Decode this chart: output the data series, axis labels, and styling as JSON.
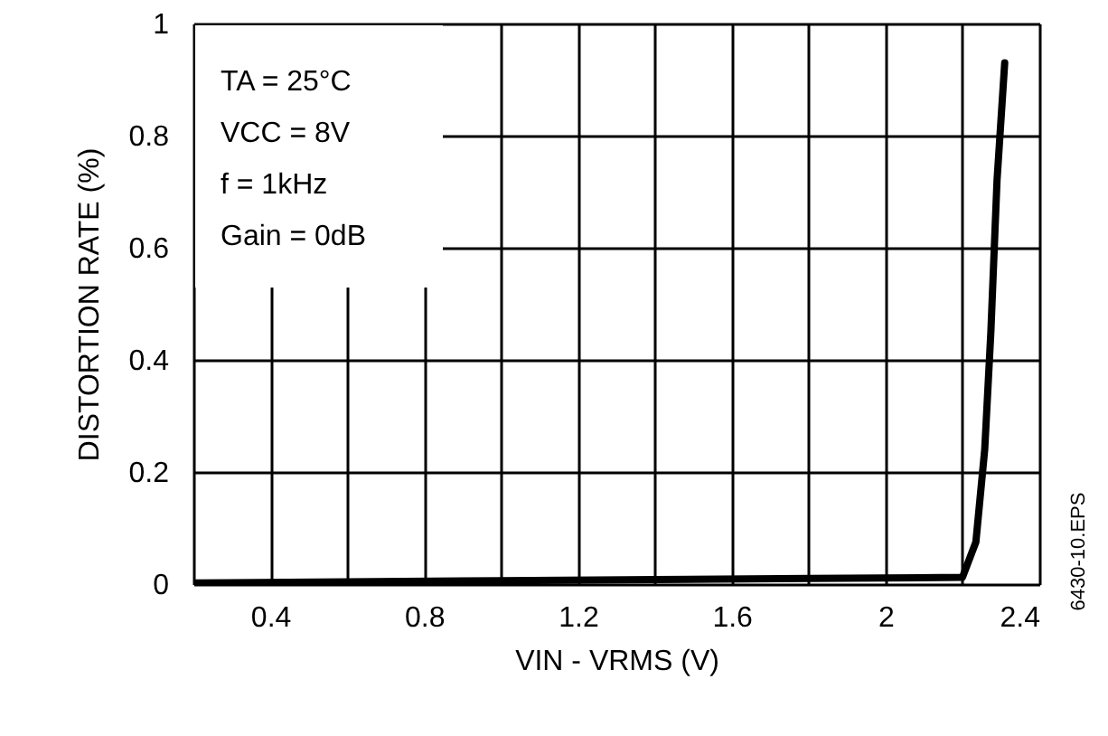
{
  "chart_data": {
    "type": "line",
    "xlabel": "VIN - VRMS  (V)",
    "ylabel": "DISTORTION RATE (%)",
    "x": [
      0.2,
      0.6,
      1.0,
      1.4,
      1.8,
      2.2,
      2.235,
      2.258,
      2.274,
      2.29,
      2.31
    ],
    "series": [
      {
        "color": "#000000",
        "values": [
          0.002,
          0.004,
          0.006,
          0.008,
          0.01,
          0.012,
          0.075,
          0.24,
          0.45,
          0.72,
          0.93
        ]
      }
    ],
    "xlim": [
      0.2,
      2.4
    ],
    "ylim": [
      0,
      1
    ],
    "xticks": [
      {
        "value": 0.2,
        "label": null
      },
      0.4,
      {
        "value": 0.6,
        "label": null
      },
      0.8,
      {
        "value": 1.0,
        "label": null
      },
      1.2,
      {
        "value": 1.4,
        "label": null
      },
      1.6,
      {
        "value": 1.8,
        "label": null
      },
      2,
      {
        "value": 2.2,
        "label": null
      },
      2.4
    ],
    "yticks": [
      0,
      0.2,
      0.4,
      0.6,
      0.8,
      1
    ],
    "grid": true,
    "marker": "none",
    "line_style": "solid",
    "annotations": [
      "TA = 25°C",
      "VCC  = 8V",
      "f = 1kHz",
      "Gain = 0dB",
      "6430-10.EPS"
    ]
  }
}
